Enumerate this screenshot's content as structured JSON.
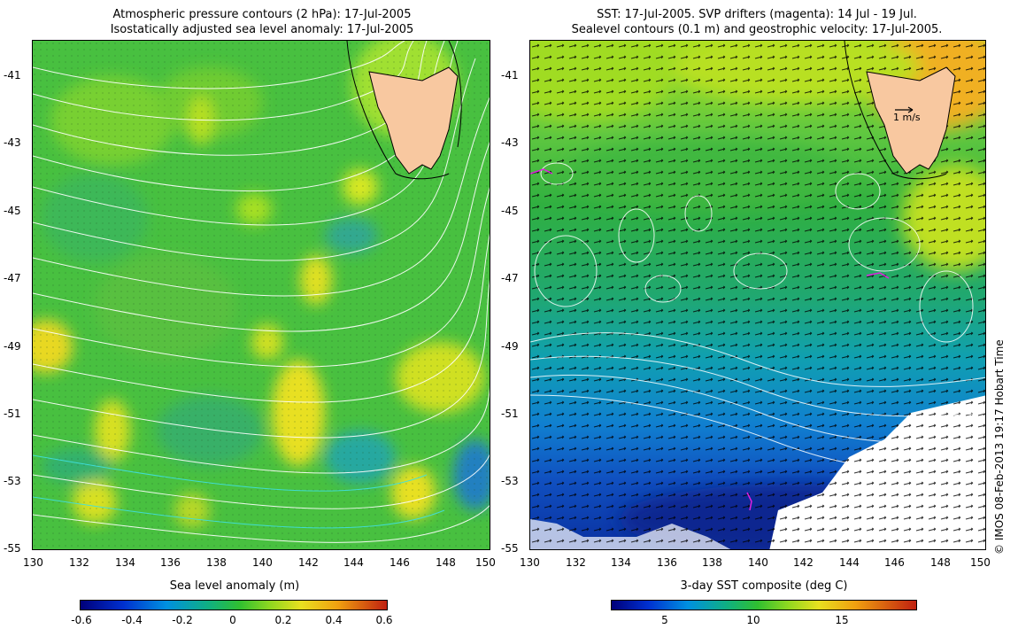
{
  "left_panel": {
    "title_line1": "Atmospheric pressure contours (2 hPa): 17-Jul-2005",
    "title_line2": "Isostatically adjusted sea level anomaly: 17-Jul-2005",
    "x_ticks": [
      "130",
      "132",
      "134",
      "136",
      "138",
      "140",
      "142",
      "144",
      "146",
      "148",
      "150"
    ],
    "y_ticks": [
      "-41",
      "-43",
      "-45",
      "-47",
      "-49",
      "-51",
      "-53",
      "-55"
    ],
    "colorbar_title": "Sea level anomaly (m)",
    "colorbar_ticks": [
      "-0.6",
      "-0.4",
      "-0.2",
      "0",
      "0.2",
      "0.4",
      "0.6"
    ]
  },
  "right_panel": {
    "title_line1": "SST: 17-Jul-2005. SVP drifters (magenta): 14 Jul - 19 Jul.",
    "title_line2": "Sealevel contours (0.1 m) and geostrophic velocity: 17-Jul-2005.",
    "x_ticks": [
      "130",
      "132",
      "134",
      "136",
      "138",
      "140",
      "142",
      "144",
      "146",
      "148",
      "150"
    ],
    "y_ticks": [
      "-41",
      "-43",
      "-45",
      "-47",
      "-49",
      "-51",
      "-53",
      "-55"
    ],
    "velocity_scale_label": "1 m/s",
    "colorbar_title": "3-day SST composite (deg C)",
    "colorbar_ticks": [
      "5",
      "10",
      "15"
    ]
  },
  "credit": "© IMOS 08-Feb-2013 19:17 Hobart Time",
  "colors": {
    "land": "#f8c8a0",
    "ocean_green": "#40c040",
    "contour": "#ffffff",
    "drifter": "#e020e0"
  }
}
